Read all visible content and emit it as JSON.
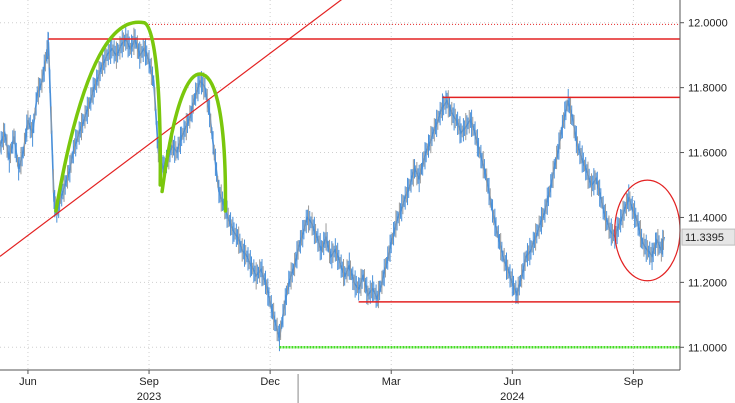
{
  "chart_data": {
    "type": "line",
    "title": "",
    "xlabel": "",
    "ylabel": "",
    "ylim": [
      10.93,
      12.07
    ],
    "y_axis_side": "right",
    "grid": true,
    "y_ticks": [
      {
        "value": 11.0,
        "label": "11.0000"
      },
      {
        "value": 11.2,
        "label": "11.2000"
      },
      {
        "value": 11.4,
        "label": "11.4000"
      },
      {
        "value": 11.6,
        "label": "11.6000"
      },
      {
        "value": 11.8,
        "label": "11.8000"
      },
      {
        "value": 12.0,
        "label": "12.0000"
      }
    ],
    "x_ticks": [
      {
        "t": 3,
        "label": "Jun"
      },
      {
        "t": 16,
        "label": "Sep"
      },
      {
        "t": 29,
        "label": "Dec"
      },
      {
        "t": 42,
        "label": "Mar"
      },
      {
        "t": 55,
        "label": "Jun"
      },
      {
        "t": 68,
        "label": "Sep"
      }
    ],
    "year_labels": [
      {
        "t": 16,
        "label": "2023"
      },
      {
        "t": 55,
        "label": "2024"
      }
    ],
    "x_range": [
      0,
      73
    ],
    "last_value": {
      "value": 11.3395,
      "label": "11.3395"
    },
    "series": [
      {
        "color": "#4a90d9",
        "points": [
          [
            0,
            11.62
          ],
          [
            0.5,
            11.66
          ],
          [
            1,
            11.58
          ],
          [
            1.5,
            11.65
          ],
          [
            2,
            11.55
          ],
          [
            2.5,
            11.6
          ],
          [
            3,
            11.7
          ],
          [
            3.5,
            11.66
          ],
          [
            4,
            11.78
          ],
          [
            4.5,
            11.82
          ],
          [
            5,
            11.9
          ],
          [
            5.2,
            11.94
          ],
          [
            5.5,
            11.7
          ],
          [
            5.8,
            11.45
          ],
          [
            6.1,
            11.42
          ],
          [
            6.5,
            11.46
          ],
          [
            7,
            11.5
          ],
          [
            7.5,
            11.55
          ],
          [
            8,
            11.62
          ],
          [
            8.5,
            11.66
          ],
          [
            9,
            11.7
          ],
          [
            9.5,
            11.74
          ],
          [
            10,
            11.79
          ],
          [
            10.5,
            11.83
          ],
          [
            11,
            11.87
          ],
          [
            11.5,
            11.9
          ],
          [
            12,
            11.92
          ],
          [
            12.5,
            11.9
          ],
          [
            13,
            11.93
          ],
          [
            13.5,
            11.95
          ],
          [
            14,
            11.92
          ],
          [
            14.5,
            11.95
          ],
          [
            15,
            11.9
          ],
          [
            15.5,
            11.92
          ],
          [
            16,
            11.88
          ],
          [
            16.5,
            11.82
          ],
          [
            17,
            11.6
          ],
          [
            17.5,
            11.55
          ],
          [
            18,
            11.58
          ],
          [
            18.5,
            11.62
          ],
          [
            19,
            11.6
          ],
          [
            19.5,
            11.65
          ],
          [
            20,
            11.68
          ],
          [
            20.5,
            11.72
          ],
          [
            21,
            11.78
          ],
          [
            21.5,
            11.82
          ],
          [
            22,
            11.8
          ],
          [
            22.5,
            11.72
          ],
          [
            23,
            11.6
          ],
          [
            23.5,
            11.48
          ],
          [
            24,
            11.44
          ],
          [
            24.5,
            11.4
          ],
          [
            25,
            11.36
          ],
          [
            25.5,
            11.34
          ],
          [
            26,
            11.3
          ],
          [
            26.5,
            11.28
          ],
          [
            27,
            11.25
          ],
          [
            27.5,
            11.22
          ],
          [
            28,
            11.24
          ],
          [
            28.5,
            11.2
          ],
          [
            29,
            11.14
          ],
          [
            29.5,
            11.08
          ],
          [
            30,
            11.03
          ],
          [
            30.5,
            11.12
          ],
          [
            31,
            11.2
          ],
          [
            31.5,
            11.24
          ],
          [
            32,
            11.3
          ],
          [
            32.5,
            11.35
          ],
          [
            33,
            11.4
          ],
          [
            33.5,
            11.38
          ],
          [
            34,
            11.34
          ],
          [
            34.5,
            11.3
          ],
          [
            35,
            11.34
          ],
          [
            35.5,
            11.28
          ],
          [
            36,
            11.3
          ],
          [
            36.5,
            11.26
          ],
          [
            37,
            11.22
          ],
          [
            37.5,
            11.25
          ],
          [
            38,
            11.2
          ],
          [
            38.5,
            11.18
          ],
          [
            39,
            11.22
          ],
          [
            39.5,
            11.16
          ],
          [
            40,
            11.18
          ],
          [
            40.5,
            11.15
          ],
          [
            41,
            11.2
          ],
          [
            41.5,
            11.26
          ],
          [
            42,
            11.32
          ],
          [
            42.5,
            11.38
          ],
          [
            43,
            11.42
          ],
          [
            43.5,
            11.46
          ],
          [
            44,
            11.5
          ],
          [
            44.5,
            11.55
          ],
          [
            45,
            11.52
          ],
          [
            45.5,
            11.58
          ],
          [
            46,
            11.62
          ],
          [
            46.5,
            11.66
          ],
          [
            47,
            11.7
          ],
          [
            47.5,
            11.74
          ],
          [
            48,
            11.76
          ],
          [
            48.5,
            11.72
          ],
          [
            49,
            11.7
          ],
          [
            49.5,
            11.66
          ],
          [
            50,
            11.68
          ],
          [
            50.5,
            11.7
          ],
          [
            51,
            11.66
          ],
          [
            51.5,
            11.6
          ],
          [
            52,
            11.55
          ],
          [
            52.5,
            11.48
          ],
          [
            53,
            11.4
          ],
          [
            53.5,
            11.34
          ],
          [
            54,
            11.28
          ],
          [
            54.5,
            11.24
          ],
          [
            55,
            11.2
          ],
          [
            55.5,
            11.16
          ],
          [
            56,
            11.22
          ],
          [
            56.5,
            11.28
          ],
          [
            57,
            11.3
          ],
          [
            57.5,
            11.34
          ],
          [
            58,
            11.38
          ],
          [
            58.5,
            11.42
          ],
          [
            59,
            11.48
          ],
          [
            59.5,
            11.55
          ],
          [
            60,
            11.62
          ],
          [
            60.5,
            11.7
          ],
          [
            61,
            11.76
          ],
          [
            61.5,
            11.7
          ],
          [
            62,
            11.62
          ],
          [
            62.5,
            11.58
          ],
          [
            63,
            11.54
          ],
          [
            63.5,
            11.5
          ],
          [
            64,
            11.52
          ],
          [
            64.5,
            11.46
          ],
          [
            65,
            11.4
          ],
          [
            65.5,
            11.36
          ],
          [
            66,
            11.34
          ],
          [
            66.5,
            11.38
          ],
          [
            67,
            11.42
          ],
          [
            67.5,
            11.46
          ],
          [
            68,
            11.42
          ],
          [
            68.5,
            11.38
          ],
          [
            69,
            11.32
          ],
          [
            69.5,
            11.3
          ],
          [
            70,
            11.28
          ],
          [
            70.5,
            11.33
          ],
          [
            71,
            11.3
          ],
          [
            71.3,
            11.34
          ]
        ]
      }
    ],
    "annotations": {
      "red_horizontal_lines": [
        {
          "y": 11.95,
          "from_t": 5.2,
          "to_t": 73,
          "color": "#e32222"
        },
        {
          "y": 11.995,
          "from_t": 16,
          "to_t": 73,
          "color": "#e32222",
          "style": "dotted"
        },
        {
          "y": 11.77,
          "from_t": 47.5,
          "to_t": 73,
          "color": "#e32222"
        },
        {
          "y": 11.14,
          "from_t": 38.5,
          "to_t": 73,
          "color": "#e32222"
        }
      ],
      "green_horizontal_line": {
        "y": 11.0,
        "from_t": 30,
        "to_t": 73,
        "color": "#44dd22",
        "style": "dotted"
      },
      "red_trendline": {
        "from": [
          0,
          11.28
        ],
        "to": [
          38,
          12.1
        ],
        "color": "#e32222"
      },
      "green_arcs": [
        {
          "from": [
            6,
            11.42
          ],
          "peak": [
            15.5,
            12.0
          ],
          "to": [
            17.2,
            11.5
          ],
          "color": "#7ac70c"
        },
        {
          "from": [
            17.4,
            11.48
          ],
          "peak": [
            21.8,
            11.84
          ],
          "to": [
            24.2,
            11.42
          ],
          "color": "#7ac70c"
        }
      ],
      "red_ellipse": {
        "center": [
          69.5,
          11.36
        ],
        "rx_t": 3.5,
        "ry": 0.155,
        "color": "#e32222"
      }
    }
  }
}
